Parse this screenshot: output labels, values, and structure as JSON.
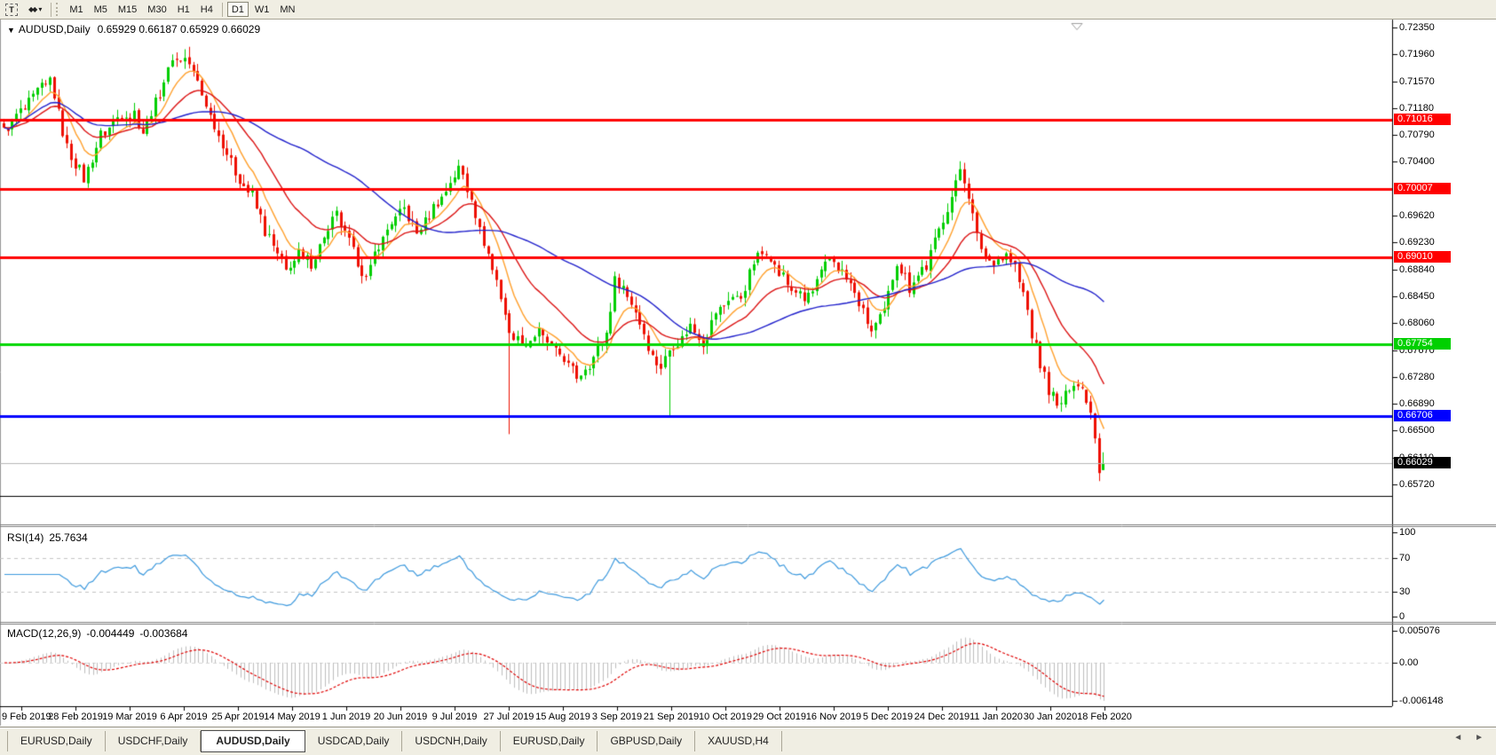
{
  "toolbar": {
    "t_button_label": "T",
    "arrows_icon": "◆◆",
    "caret_icon": "▾",
    "timeframes": [
      "M1",
      "M5",
      "M15",
      "M30",
      "H1",
      "H4",
      "D1",
      "W1",
      "MN"
    ],
    "active_timeframe": "D1"
  },
  "chart_header": {
    "collapse_icon": "▼",
    "symbol": "AUDUSD,Daily",
    "ohlc": "0.65929 0.66187 0.65929 0.66029"
  },
  "price_axis": {
    "ticks": [
      "0.72350",
      "0.71960",
      "0.71570",
      "0.71180",
      "0.70790",
      "0.70400",
      "0.69620",
      "0.69230",
      "0.68840",
      "0.68450",
      "0.68060",
      "0.67670",
      "0.67280",
      "0.66890",
      "0.66500",
      "0.66110",
      "0.65720"
    ],
    "badges": [
      {
        "value": "0.71016",
        "color": "#ff0000"
      },
      {
        "value": "0.70007",
        "color": "#ff0000"
      },
      {
        "value": "0.69010",
        "color": "#ff0000"
      },
      {
        "value": "0.67754",
        "color": "#00d000"
      },
      {
        "value": "0.66706",
        "color": "#0000ff"
      },
      {
        "value": "0.66029",
        "color": "#000000"
      }
    ]
  },
  "rsi_panel": {
    "label": "RSI(14)",
    "value": "25.7634",
    "axis": [
      "100",
      "70",
      "30",
      "0"
    ]
  },
  "macd_panel": {
    "label": "MACD(12,26,9)",
    "value_macd": "-0.004449",
    "value_signal": "-0.003684",
    "axis": [
      "0.005076",
      "0.00",
      "-0.006148"
    ]
  },
  "date_axis": {
    "labels": [
      "9 Feb 2019",
      "28 Feb 2019",
      "19 Mar 2019",
      "6 Apr 2019",
      "25 Apr 2019",
      "14 May 2019",
      "1 Jun 2019",
      "20 Jun 2019",
      "9 Jul 2019",
      "27 Jul 2019",
      "15 Aug 2019",
      "3 Sep 2019",
      "21 Sep 2019",
      "10 Oct 2019",
      "29 Oct 2019",
      "16 Nov 2019",
      "5 Dec 2019",
      "24 Dec 2019",
      "11 Jan 2020",
      "30 Jan 2020",
      "18 Feb 2020"
    ]
  },
  "tab_bar": {
    "scroll_left": "◄",
    "scroll_right": "►",
    "tabs": [
      {
        "label": "EURUSD,Daily",
        "active": false
      },
      {
        "label": "USDCHF,Daily",
        "active": false
      },
      {
        "label": "AUDUSD,Daily",
        "active": true
      },
      {
        "label": "USDCAD,Daily",
        "active": false
      },
      {
        "label": "USDCNH,Daily",
        "active": false
      },
      {
        "label": "EURUSD,Daily",
        "active": false
      },
      {
        "label": "GBPUSD,Daily",
        "active": false
      },
      {
        "label": "XAUUSD,H4",
        "active": false
      }
    ]
  },
  "chart_data": {
    "type": "candlestick",
    "symbol": "AUDUSD",
    "timeframe": "Daily",
    "bars": 262,
    "last_ohlc": {
      "open": 0.65929,
      "high": 0.66187,
      "low": 0.65929,
      "close": 0.66029
    },
    "price_range_top": 0.7235,
    "price_range_bottom": 0.6572,
    "candle_up_color": "#00ce00",
    "candle_down_color": "#ee0f00",
    "close_waypoints": [
      [
        0,
        0.7085
      ],
      [
        6,
        0.7125
      ],
      [
        11,
        0.716
      ],
      [
        15,
        0.706
      ],
      [
        19,
        0.7015
      ],
      [
        23,
        0.708
      ],
      [
        27,
        0.7105
      ],
      [
        31,
        0.711
      ],
      [
        33,
        0.7085
      ],
      [
        36,
        0.7125
      ],
      [
        40,
        0.719
      ],
      [
        44,
        0.7185
      ],
      [
        49,
        0.711
      ],
      [
        53,
        0.705
      ],
      [
        56,
        0.7015
      ],
      [
        59,
        0.699
      ],
      [
        62,
        0.694
      ],
      [
        67,
        0.6885
      ],
      [
        70,
        0.6905
      ],
      [
        73,
        0.689
      ],
      [
        76,
        0.693
      ],
      [
        79,
        0.696
      ],
      [
        82,
        0.6925
      ],
      [
        86,
        0.687
      ],
      [
        89,
        0.692
      ],
      [
        92,
        0.695
      ],
      [
        95,
        0.6975
      ],
      [
        98,
        0.6935
      ],
      [
        101,
        0.6965
      ],
      [
        105,
        0.7
      ],
      [
        108,
        0.703
      ],
      [
        111,
        0.699
      ],
      [
        114,
        0.692
      ],
      [
        117,
        0.687
      ],
      [
        120,
        0.679
      ],
      [
        124,
        0.6775
      ],
      [
        127,
        0.679
      ],
      [
        130,
        0.677
      ],
      [
        133,
        0.6755
      ],
      [
        136,
        0.673
      ],
      [
        139,
        0.6745
      ],
      [
        143,
        0.679
      ],
      [
        145,
        0.687
      ],
      [
        147,
        0.686
      ],
      [
        150,
        0.6825
      ],
      [
        153,
        0.677
      ],
      [
        156,
        0.6742
      ],
      [
        159,
        0.6775
      ],
      [
        163,
        0.68
      ],
      [
        166,
        0.678
      ],
      [
        169,
        0.682
      ],
      [
        172,
        0.6838
      ],
      [
        175,
        0.6845
      ],
      [
        178,
        0.6895
      ],
      [
        181,
        0.6915
      ],
      [
        184,
        0.688
      ],
      [
        187,
        0.6855
      ],
      [
        190,
        0.684
      ],
      [
        193,
        0.6862
      ],
      [
        196,
        0.6905
      ],
      [
        200,
        0.687
      ],
      [
        203,
        0.6835
      ],
      [
        206,
        0.6792
      ],
      [
        209,
        0.682
      ],
      [
        212,
        0.6895
      ],
      [
        215,
        0.686
      ],
      [
        219,
        0.689
      ],
      [
        222,
        0.694
      ],
      [
        225,
        0.699
      ],
      [
        227,
        0.7032
      ],
      [
        229,
        0.6992
      ],
      [
        231,
        0.6935
      ],
      [
        233,
        0.6905
      ],
      [
        235,
        0.6895
      ],
      [
        238,
        0.6905
      ],
      [
        240,
        0.6885
      ],
      [
        242,
        0.685
      ],
      [
        244,
        0.6792
      ],
      [
        246,
        0.6742
      ],
      [
        248,
        0.6712
      ],
      [
        250,
        0.6682
      ],
      [
        252,
        0.67
      ],
      [
        254,
        0.6722
      ],
      [
        256,
        0.6712
      ],
      [
        258,
        0.668
      ],
      [
        259,
        0.6648
      ],
      [
        260,
        0.6592
      ],
      [
        261,
        0.66029
      ]
    ],
    "special_wicks": [
      {
        "i": 44,
        "high": 0.7207
      },
      {
        "i": 108,
        "high": 0.7042
      },
      {
        "i": 120,
        "low": 0.6645
      },
      {
        "i": 158,
        "low": 0.6669
      },
      {
        "i": 227,
        "high": 0.7041
      },
      {
        "i": 260,
        "low": 0.6586
      }
    ],
    "overlays": {
      "moving_averages": [
        {
          "name": "fast",
          "period": 8,
          "method": "ema",
          "color": "#ffa02c"
        },
        {
          "name": "medium",
          "period": 21,
          "method": "ema",
          "color": "#dc1414"
        },
        {
          "name": "slow",
          "period": 50,
          "method": "sma",
          "color": "#2222cc"
        }
      ],
      "horizontal_levels": [
        {
          "price": 0.71016,
          "color": "#ff0000"
        },
        {
          "price": 0.70007,
          "color": "#ff0000"
        },
        {
          "price": 0.6901,
          "color": "#ff0000"
        },
        {
          "price": 0.67754,
          "color": "#00d800"
        },
        {
          "price": 0.66706,
          "color": "#0000ff"
        }
      ],
      "current_price_line": {
        "price": 0.66029,
        "color": "#b8b8b8"
      }
    },
    "indicators": [
      {
        "type": "RSI",
        "period": 14,
        "value": 25.7634,
        "levels": [
          70,
          30
        ],
        "range": [
          0,
          100
        ],
        "color": "#3e9ade"
      },
      {
        "type": "MACD",
        "fast": 12,
        "slow": 26,
        "signal": 9,
        "values": [
          -0.004449,
          -0.003684
        ],
        "axis_max": 0.005076,
        "axis_min": -0.006148,
        "histogram_color": "#bebebe",
        "signal_color": "#e00000"
      }
    ]
  }
}
